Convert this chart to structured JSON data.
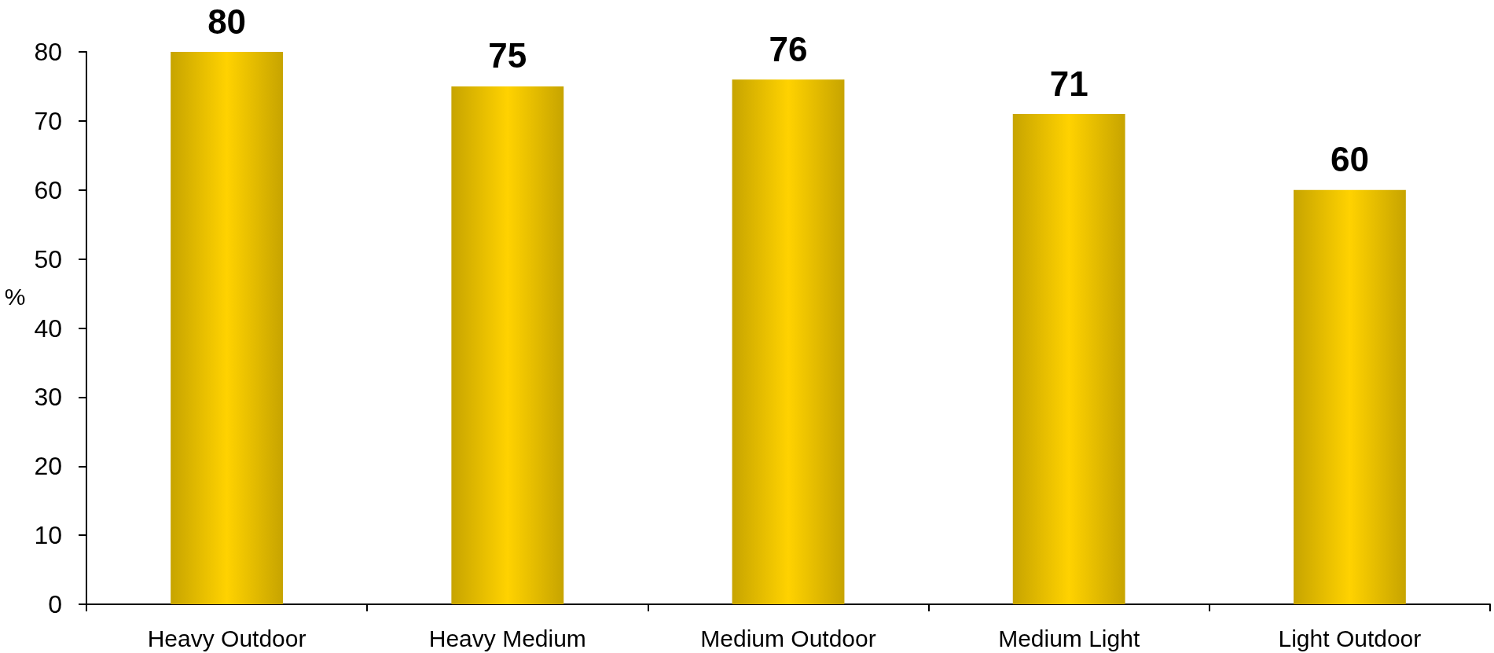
{
  "chart_data": {
    "type": "bar",
    "ylabel": "%",
    "categories": [
      "Heavy Outdoor",
      "Heavy Medium",
      "Medium Outdoor",
      "Medium Light",
      "Light Outdoor"
    ],
    "values": [
      80,
      75,
      76,
      71,
      60
    ],
    "color": "#ffd200",
    "ylim": [
      0,
      80
    ],
    "yticks": [
      0,
      10,
      20,
      30,
      40,
      50,
      60,
      70,
      80
    ],
    "data_labels": true,
    "grid": false
  }
}
